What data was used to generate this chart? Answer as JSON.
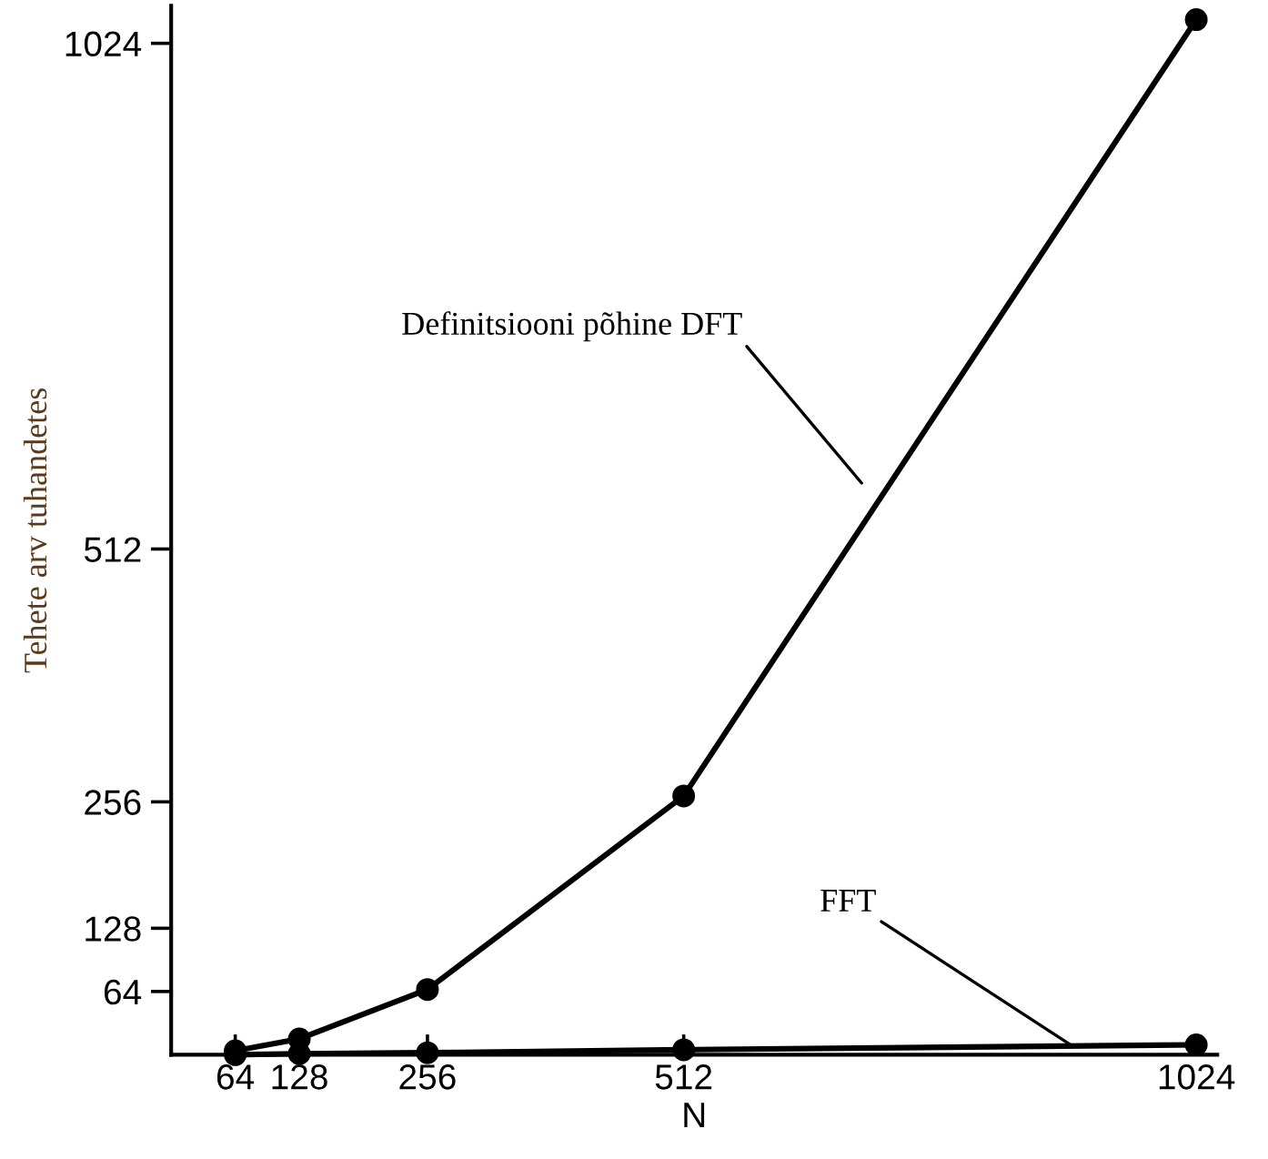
{
  "chart_data": {
    "type": "line",
    "xlabel": "N",
    "ylabel": "Tehete arv tuhandetes",
    "x": [
      64,
      128,
      256,
      512,
      1024
    ],
    "series": [
      {
        "color": "#000000",
        "values": [
          4,
          16,
          66,
          262,
          1048
        ]
      },
      {
        "color": "#000000",
        "values": [
          0,
          1,
          2,
          5,
          10
        ]
      }
    ],
    "xlim": [
      0,
      1045
    ],
    "ylim": [
      0,
      1062
    ],
    "xticks": [
      64,
      128,
      256,
      512,
      1024
    ],
    "yticks": [
      64,
      128,
      256,
      512,
      1024
    ],
    "marker": "circle",
    "line_style": "solid",
    "grid": false,
    "legend": false,
    "annotations": [
      "Definitsiooni põhine DFT",
      {
        "text": "FFT",
        "x": 900,
        "y": 9
      }
    ]
  }
}
